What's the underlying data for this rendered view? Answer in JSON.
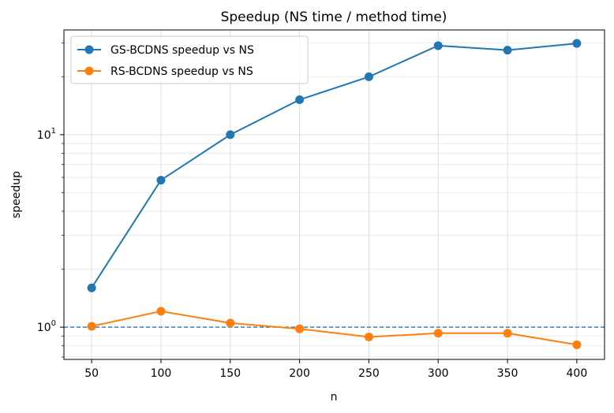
{
  "chart_data": {
    "type": "line",
    "title": "Speedup (NS time / method time)",
    "xlabel": "n",
    "ylabel": "speedup",
    "yscale": "log",
    "x": [
      50,
      100,
      150,
      200,
      250,
      300,
      350,
      400
    ],
    "xlim": [
      30,
      420
    ],
    "ylim": [
      0.68,
      35
    ],
    "x_ticks": [
      50,
      100,
      150,
      200,
      250,
      300,
      350,
      400
    ],
    "x_tick_labels": [
      "50",
      "100",
      "150",
      "200",
      "250",
      "300",
      "350",
      "400"
    ],
    "y_ticks_major": [
      1,
      10
    ],
    "y_tick_labels": [
      {
        "base": "10",
        "exp": "0"
      },
      {
        "base": "10",
        "exp": "1"
      }
    ],
    "grid": true,
    "legend_position": "top-left",
    "reference_line": {
      "y": 1,
      "style": "dashed",
      "color": "#1f77b4"
    },
    "series": [
      {
        "name": "GS-BCDNS speedup vs NS",
        "color": "#1f77b4",
        "values": [
          1.6,
          5.8,
          10.0,
          15.2,
          20.0,
          29.0,
          27.5,
          29.8
        ]
      },
      {
        "name": "RS-BCDNS speedup vs NS",
        "color": "#ff7f0e",
        "values": [
          1.01,
          1.21,
          1.05,
          0.98,
          0.89,
          0.93,
          0.93,
          0.81
        ]
      }
    ]
  }
}
